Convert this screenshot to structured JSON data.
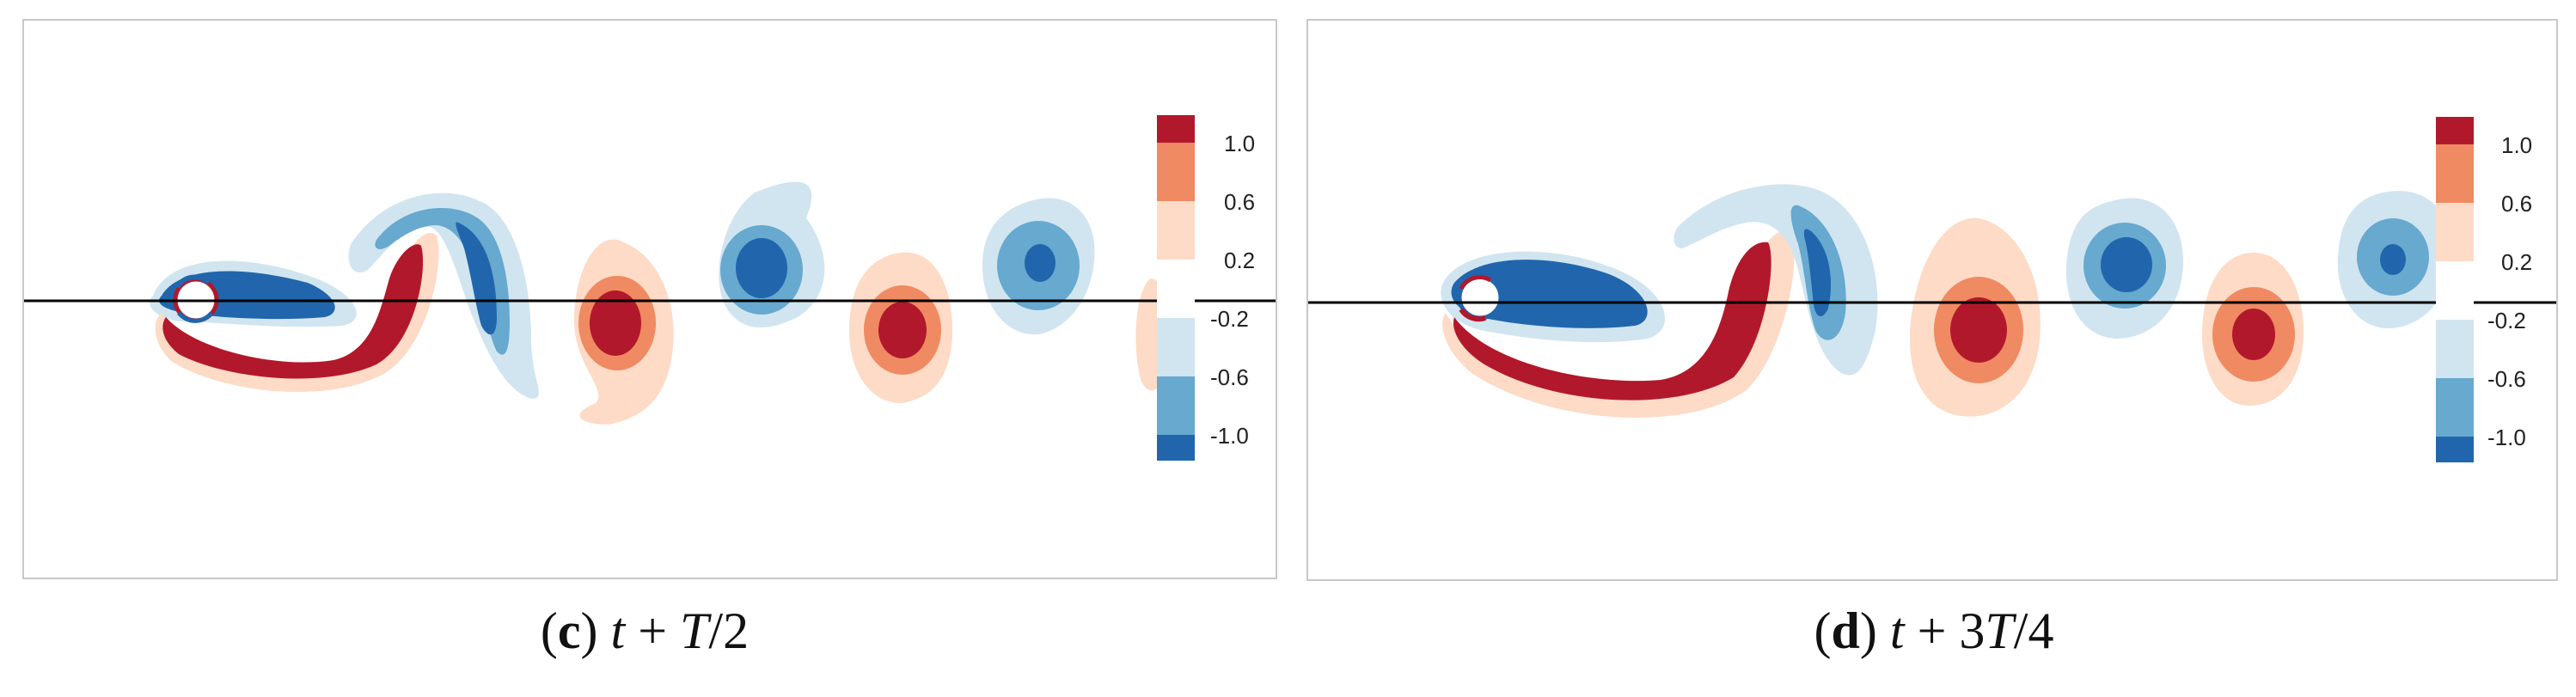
{
  "panels": [
    {
      "id": "c",
      "caption_letter": "c",
      "caption_math": "t + T/2",
      "caption_paren_open": "(",
      "caption_paren_close": ")",
      "caption_t": "t",
      "caption_plus": " + ",
      "caption_T": "T",
      "caption_rest": "/2",
      "colorbar_labels": [
        "1.0",
        "0.6",
        "0.2",
        "-0.2",
        "-0.6",
        "-1.0"
      ]
    },
    {
      "id": "d",
      "caption_letter": "d",
      "caption_math": "t + 3T/4",
      "caption_paren_open": "(",
      "caption_paren_close": ")",
      "caption_t": "t",
      "caption_plus": " + 3",
      "caption_T": "T",
      "caption_rest": "/4",
      "colorbar_labels": [
        "1.0",
        "0.6",
        "0.2",
        "-0.2",
        "-0.6",
        "-1.0"
      ]
    }
  ],
  "chart_data": [
    {
      "type": "heatmap",
      "title": "(c) t + T/2",
      "field": "vorticity contours (wake behind cylinder)",
      "levels": [
        -1.0,
        -0.6,
        -0.2,
        0.2,
        0.6,
        1.0
      ],
      "colorbar": {
        "ticks": [
          1.0,
          0.6,
          0.2,
          -0.2,
          -0.6,
          -1.0
        ],
        "colors": [
          "#b2182b",
          "#ef8a62",
          "#fddbc7",
          "#ffffff",
          "#d1e5f0",
          "#67a9cf",
          "#2166ac"
        ]
      }
    },
    {
      "type": "heatmap",
      "title": "(d) t + 3T/4",
      "field": "vorticity contours (wake behind cylinder)",
      "levels": [
        -1.0,
        -0.6,
        -0.2,
        0.2,
        0.6,
        1.0
      ],
      "colorbar": {
        "ticks": [
          1.0,
          0.6,
          0.2,
          -0.2,
          -0.6,
          -1.0
        ],
        "colors": [
          "#b2182b",
          "#ef8a62",
          "#fddbc7",
          "#ffffff",
          "#d1e5f0",
          "#67a9cf",
          "#2166ac"
        ]
      }
    }
  ],
  "colors": {
    "red_dark": "#b2182b",
    "red_mid": "#ef8a62",
    "red_light": "#fddbc7",
    "blue_light": "#d1e5f0",
    "blue_mid": "#67a9cf",
    "blue_dark": "#2166ac",
    "frame": "#c8c8c8",
    "centerline": "#000000"
  }
}
